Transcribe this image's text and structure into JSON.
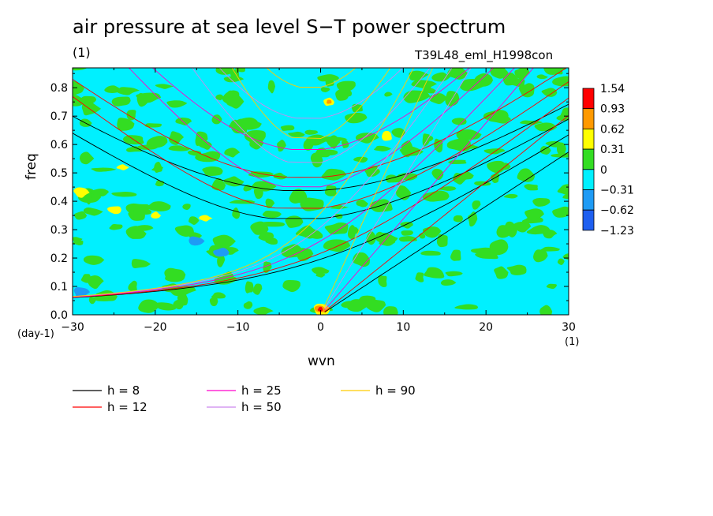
{
  "title": "air pressure at sea level S−T power spectrum",
  "title_unit": "(1)",
  "run_name": "T39L48_eml_H1998con",
  "chart_data": {
    "type": "heatmap",
    "xlabel": "wvn",
    "ylabel": "freq",
    "x_unit": "(1)",
    "y_unit": "(day-1)",
    "xlim": [
      -30,
      30
    ],
    "ylim": [
      0,
      0.87
    ],
    "x_ticks": [
      -30,
      -20,
      -10,
      0,
      10,
      20,
      30
    ],
    "x_tick_labels": [
      "−30",
      "−20",
      "−10",
      "0",
      "10",
      "20",
      "30"
    ],
    "y_ticks": [
      0.0,
      0.1,
      0.2,
      0.3,
      0.4,
      0.5,
      0.6,
      0.7,
      0.8
    ],
    "y_tick_labels": [
      "0.0",
      "0.1",
      "0.2",
      "0.3",
      "0.4",
      "0.5",
      "0.6",
      "0.7",
      "0.8"
    ],
    "colorbar": {
      "levels": [
        "1.54",
        "0.93",
        "0.62",
        "0.31",
        "0",
        "−0.31",
        "−0.62",
        "−1.23"
      ],
      "colors": [
        "#ff0000",
        "#ff9900",
        "#ffff00",
        "#33dd22",
        "#00f0ff",
        "#1e9bf5",
        "#1e5ff0"
      ]
    },
    "background_level_color": "#00f0ff",
    "field_features": [
      {
        "x": 0,
        "y": 0.02,
        "level": "1.54"
      },
      {
        "x": 1,
        "y": 0.75,
        "level": "0.93"
      },
      {
        "x": -25,
        "y": 0.37,
        "level": "0.62"
      },
      {
        "x": -14,
        "y": 0.34,
        "level": "0.62"
      },
      {
        "x": 8,
        "y": 0.63,
        "level": "0.62"
      },
      {
        "x": -24,
        "y": 0.52,
        "level": "0.62"
      },
      {
        "x": -29,
        "y": 0.43,
        "level": "0.62"
      },
      {
        "x": -20,
        "y": 0.35,
        "level": "0.62"
      },
      {
        "x": -15,
        "y": 0.26,
        "level": "−0.31"
      },
      {
        "x": -12,
        "y": 0.22,
        "level": "−0.31"
      },
      {
        "x": -29,
        "y": 0.08,
        "level": "−0.31"
      }
    ],
    "dispersion_curves": {
      "legend": [
        {
          "label": "h =  8",
          "color": "#000000"
        },
        {
          "label": "h = 12",
          "color": "#ff0000"
        },
        {
          "label": "h = 25",
          "color": "#ff00cc"
        },
        {
          "label": "h = 50",
          "color": "#cc88ee"
        },
        {
          "label": "h = 90",
          "color": "#ffcc00"
        }
      ],
      "h": [
        8,
        12,
        25,
        50,
        90
      ],
      "colors": [
        "#000000",
        "#ff0000",
        "#ff00cc",
        "#cc88ee",
        "#ffcc00"
      ]
    }
  }
}
